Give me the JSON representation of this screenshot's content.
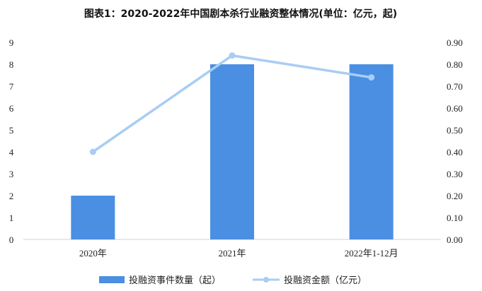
{
  "chart_data": {
    "type": "bar",
    "title": "图表1：2020-2022年中国剧本杀行业融资整体情况(单位：亿元，起)",
    "categories": [
      "2020年",
      "2021年",
      "2022年1-12月"
    ],
    "series": [
      {
        "name": "投融资事件数量（起）",
        "type": "bar",
        "axis": "left",
        "values": [
          2,
          8,
          8
        ]
      },
      {
        "name": "投融资金额（亿元）",
        "type": "line",
        "axis": "right",
        "values": [
          0.4,
          0.84,
          0.74
        ]
      }
    ],
    "y_left": {
      "ylim": [
        0,
        9
      ],
      "ticks": [
        "0",
        "1",
        "2",
        "3",
        "4",
        "5",
        "6",
        "7",
        "8",
        "9"
      ]
    },
    "y_right": {
      "ylim": [
        0,
        0.9
      ],
      "ticks": [
        "0.00",
        "0.10",
        "0.20",
        "0.30",
        "0.40",
        "0.50",
        "0.60",
        "0.70",
        "0.80",
        "0.90"
      ]
    },
    "grid": false,
    "legend_position": "bottom",
    "colors": {
      "bar": "#4a8fe2",
      "line": "#a9cdf3"
    }
  }
}
